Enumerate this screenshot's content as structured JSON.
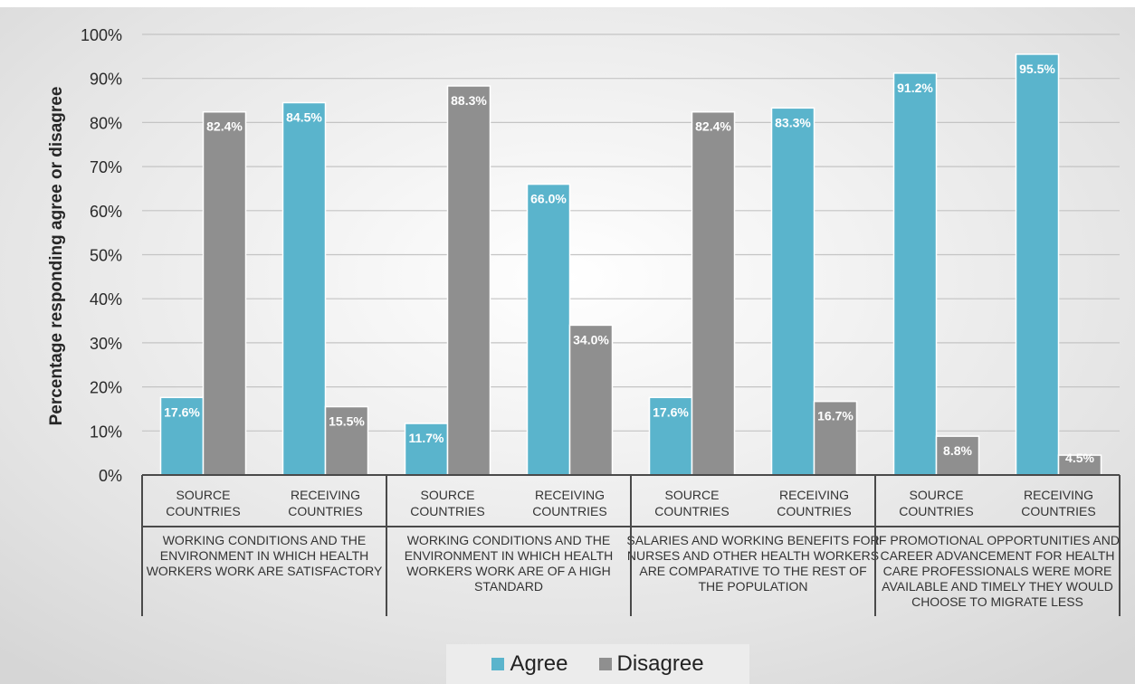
{
  "header_fragment": "",
  "legend": {
    "agree_label": "Agree",
    "disagree_label": "Disagree",
    "agree_color": "#5ab4cc",
    "disagree_color": "#8f8f8f"
  },
  "chart_data": {
    "type": "bar",
    "ylabel": "Percentage responding agree or disagree",
    "ylim": [
      0,
      100
    ],
    "y_ticks": [
      "0%",
      "10%",
      "20%",
      "30%",
      "40%",
      "50%",
      "60%",
      "70%",
      "80%",
      "90%",
      "100%"
    ],
    "grid": true,
    "legend_position": "bottom",
    "groups": [
      {
        "label_lines": [
          "WORKING CONDITIONS AND THE",
          "ENVIRONMENT IN WHICH HEALTH",
          "WORKERS WORK ARE SATISFACTORY"
        ],
        "categories": [
          {
            "lines": [
              "SOURCE",
              "COUNTRIES"
            ],
            "agree": 17.6,
            "disagree": 82.4
          },
          {
            "lines": [
              "RECEIVING",
              "COUNTRIES"
            ],
            "agree": 84.5,
            "disagree": 15.5
          }
        ]
      },
      {
        "label_lines": [
          "WORKING CONDITIONS AND THE",
          "ENVIRONMENT IN WHICH HEALTH",
          "WORKERS WORK ARE OF A HIGH",
          "STANDARD"
        ],
        "categories": [
          {
            "lines": [
              "SOURCE",
              "COUNTRIES"
            ],
            "agree": 11.7,
            "disagree": 88.3
          },
          {
            "lines": [
              "RECEIVING",
              "COUNTRIES"
            ],
            "agree": 66.0,
            "disagree": 34.0
          }
        ]
      },
      {
        "label_lines": [
          "SALARIES AND WORKING BENEFITS FOR",
          "NURSES AND OTHER HEALTH WORKERS",
          "ARE COMPARATIVE TO THE REST OF",
          "THE POPULATION"
        ],
        "categories": [
          {
            "lines": [
              "SOURCE",
              "COUNTRIES"
            ],
            "agree": 17.6,
            "disagree": 82.4
          },
          {
            "lines": [
              "RECEIVING",
              "COUNTRIES"
            ],
            "agree": 83.3,
            "disagree": 16.7
          }
        ]
      },
      {
        "label_lines": [
          "IF PROMOTIONAL OPPORTUNITIES AND",
          "CAREER ADVANCEMENT FOR HEALTH",
          "CARE PROFESSIONALS WERE MORE",
          "AVAILABLE AND TIMELY THEY WOULD",
          "CHOOSE TO MIGRATE LESS"
        ],
        "categories": [
          {
            "lines": [
              "SOURCE",
              "COUNTRIES"
            ],
            "agree": 91.2,
            "disagree": 8.8
          },
          {
            "lines": [
              "RECEIVING",
              "COUNTRIES"
            ],
            "agree": 95.5,
            "disagree": 4.5
          }
        ]
      }
    ],
    "series": [
      {
        "name": "Agree",
        "key": "agree"
      },
      {
        "name": "Disagree",
        "key": "disagree"
      }
    ]
  }
}
